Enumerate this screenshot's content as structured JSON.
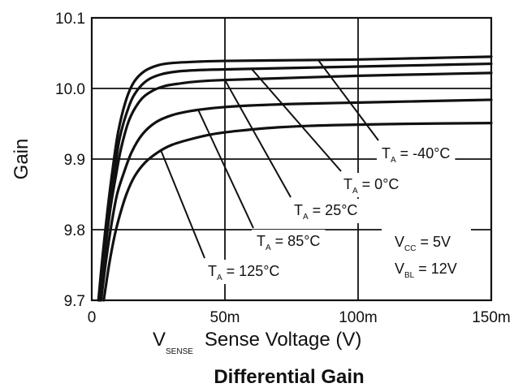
{
  "chart_data": {
    "type": "line",
    "title": "Differential Gain",
    "xlabel": {
      "main": "V",
      "sub": "SENSE",
      "rest": "Sense Voltage (V)"
    },
    "ylabel": "Gain",
    "xlim": [
      0,
      0.15
    ],
    "ylim": [
      9.7,
      10.1
    ],
    "grid": true,
    "x_ticks": [
      {
        "value": 0,
        "label": "0"
      },
      {
        "value": 0.05,
        "label": "50m"
      },
      {
        "value": 0.1,
        "label": "100m"
      },
      {
        "value": 0.15,
        "label": "150m"
      }
    ],
    "y_ticks": [
      {
        "value": 9.7,
        "label": "9.7"
      },
      {
        "value": 9.8,
        "label": "9.8"
      },
      {
        "value": 9.9,
        "label": "9.9"
      },
      {
        "value": 10.0,
        "label": "10.0"
      },
      {
        "value": 10.1,
        "label": "10.1"
      }
    ],
    "series": [
      {
        "name": "T_A = -40°C",
        "main": "T",
        "sub": "A",
        "rest": " = -40°C",
        "x": [
          0.0025,
          0.004,
          0.006,
          0.008,
          0.01,
          0.013,
          0.016,
          0.02,
          0.025,
          0.03,
          0.04,
          0.05,
          0.075,
          0.1,
          0.125,
          0.15
        ],
        "y": [
          9.7,
          9.76,
          9.83,
          9.89,
          9.94,
          9.985,
          10.01,
          10.025,
          10.033,
          10.036,
          10.038,
          10.039,
          10.04,
          10.041,
          10.043,
          10.045
        ]
      },
      {
        "name": "T_A = 0°C",
        "main": "T",
        "sub": "A",
        "rest": " = 0°C",
        "x": [
          0.0028,
          0.0045,
          0.0065,
          0.0085,
          0.0105,
          0.014,
          0.017,
          0.021,
          0.026,
          0.032,
          0.04,
          0.05,
          0.075,
          0.1,
          0.125,
          0.15
        ],
        "y": [
          9.7,
          9.76,
          9.83,
          9.88,
          9.93,
          9.975,
          9.997,
          10.012,
          10.02,
          10.024,
          10.026,
          10.027,
          10.029,
          10.031,
          10.033,
          10.035
        ]
      },
      {
        "name": "T_A = 25°C",
        "main": "T",
        "sub": "A",
        "rest": " = 25°C",
        "x": [
          0.003,
          0.005,
          0.007,
          0.009,
          0.011,
          0.014,
          0.018,
          0.022,
          0.027,
          0.033,
          0.04,
          0.05,
          0.075,
          0.1,
          0.125,
          0.15
        ],
        "y": [
          9.7,
          9.77,
          9.83,
          9.875,
          9.915,
          9.955,
          9.982,
          9.995,
          10.003,
          10.007,
          10.01,
          10.012,
          10.015,
          10.018,
          10.02,
          10.022
        ]
      },
      {
        "name": "T_A = 85°C",
        "main": "T",
        "sub": "A",
        "rest": " = 85°C",
        "x": [
          0.0035,
          0.0055,
          0.0075,
          0.0095,
          0.012,
          0.015,
          0.019,
          0.024,
          0.03,
          0.037,
          0.045,
          0.055,
          0.075,
          0.1,
          0.125,
          0.15
        ],
        "y": [
          9.7,
          9.76,
          9.81,
          9.85,
          9.88,
          9.91,
          9.935,
          9.952,
          9.962,
          9.968,
          9.972,
          9.975,
          9.978,
          9.98,
          9.982,
          9.984
        ]
      },
      {
        "name": "T_A = 125°C",
        "main": "T",
        "sub": "A",
        "rest": " = 125°C",
        "x": [
          0.0045,
          0.0065,
          0.0085,
          0.0105,
          0.013,
          0.016,
          0.02,
          0.025,
          0.03,
          0.037,
          0.045,
          0.055,
          0.07,
          0.09,
          0.12,
          0.15
        ],
        "y": [
          9.7,
          9.75,
          9.79,
          9.82,
          9.85,
          9.875,
          9.895,
          9.91,
          9.92,
          9.928,
          9.935,
          9.94,
          9.945,
          9.948,
          9.95,
          9.951
        ]
      }
    ],
    "conditions": [
      {
        "main": "V",
        "sub": "CC",
        "rest": " = 5V"
      },
      {
        "main": "V",
        "sub": "BL",
        "rest": " = 12V"
      }
    ]
  }
}
